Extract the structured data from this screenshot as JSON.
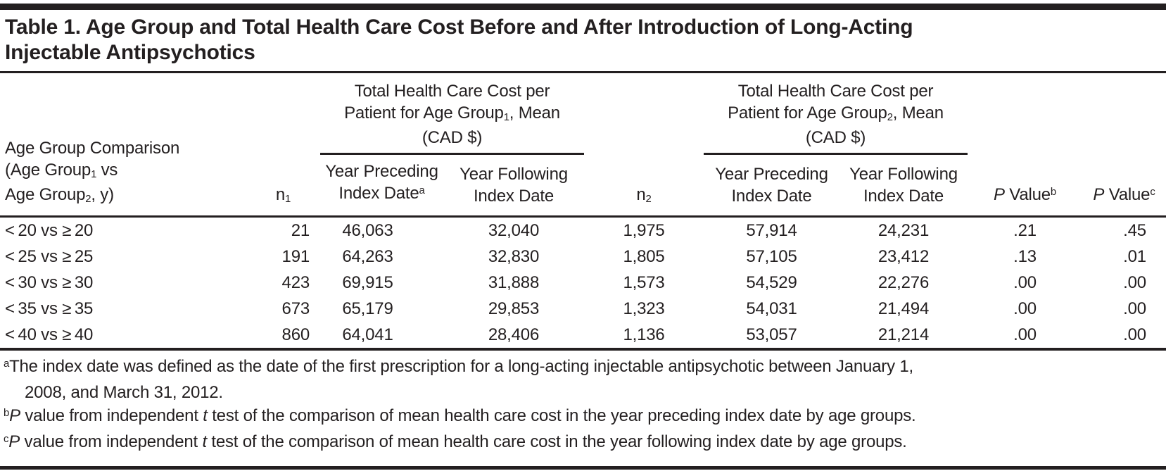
{
  "colors": {
    "text": "#231f20",
    "rule": "#231f20",
    "background": "#ffffff"
  },
  "title": {
    "line1": "Table 1. Age Group and Total Health Care Cost Before and After Introduction of Long-Acting",
    "line2": "Injectable Antipsychotics"
  },
  "table": {
    "header": {
      "stub": {
        "line1": "Age Group Comparison",
        "line2_pre": "(Age Group",
        "line2_sub": "1",
        "line2_post": " vs",
        "line3_pre": "Age Group",
        "line3_sub": "2",
        "line3_post": ", y)"
      },
      "n1": {
        "base": "n",
        "sub": "1"
      },
      "n2": {
        "base": "n",
        "sub": "2"
      },
      "group1": {
        "line1": "Total Health Care Cost per",
        "line2_pre": "Patient for Age Group",
        "line2_sub": "1",
        "line2_post": ", Mean",
        "line3": "(CAD $)"
      },
      "group2": {
        "line1": "Total Health Care Cost per",
        "line2_pre": "Patient for Age Group",
        "line2_sub": "2",
        "line2_post": ", Mean",
        "line3": "(CAD $)"
      },
      "g1_preceding": {
        "line1": "Year Preceding",
        "line2": "Index Date",
        "sup": "a"
      },
      "g1_following": {
        "line1": "Year Following",
        "line2": "Index Date"
      },
      "g2_preceding": {
        "line1": "Year Preceding",
        "line2": "Index Date"
      },
      "g2_following": {
        "line1": "Year Following",
        "line2": "Index Date"
      },
      "p_value_b": {
        "p": "P",
        "rest": " Value",
        "sup": "b"
      },
      "p_value_c": {
        "p": "P",
        "rest": " Value",
        "sup": "c"
      }
    },
    "rows": [
      {
        "comparison": "< 20 vs ≥ 20",
        "n1": "21",
        "g1_preceding": "46,063",
        "g1_following": "32,040",
        "n2": "1,975",
        "g2_preceding": "57,914",
        "g2_following": "24,231",
        "p_value_b": ".21",
        "p_value_c": ".45"
      },
      {
        "comparison": "< 25 vs ≥ 25",
        "n1": "191",
        "g1_preceding": "64,263",
        "g1_following": "32,830",
        "n2": "1,805",
        "g2_preceding": "57,105",
        "g2_following": "23,412",
        "p_value_b": ".13",
        "p_value_c": ".01"
      },
      {
        "comparison": "< 30 vs ≥ 30",
        "n1": "423",
        "g1_preceding": "69,915",
        "g1_following": "31,888",
        "n2": "1,573",
        "g2_preceding": "54,529",
        "g2_following": "22,276",
        "p_value_b": ".00",
        "p_value_c": ".00"
      },
      {
        "comparison": "< 35 vs ≥ 35",
        "n1": "673",
        "g1_preceding": "65,179",
        "g1_following": "29,853",
        "n2": "1,323",
        "g2_preceding": "54,031",
        "g2_following": "21,494",
        "p_value_b": ".00",
        "p_value_c": ".00"
      },
      {
        "comparison": "< 40 vs ≥ 40",
        "n1": "860",
        "g1_preceding": "64,041",
        "g1_following": "28,406",
        "n2": "1,136",
        "g2_preceding": "53,057",
        "g2_following": "21,214",
        "p_value_b": ".00",
        "p_value_c": ".00"
      }
    ]
  },
  "footnotes": [
    {
      "parts": [
        {
          "text": "a",
          "fmt": "sup"
        },
        {
          "text": "The index date was defined as the date of the first prescription for a long-acting injectable antipsychotic between January 1,",
          "fmt": ""
        },
        {
          "fmt": "br"
        },
        {
          "text": "2008, and March 31, 2012.",
          "fmt": "indent"
        }
      ]
    },
    {
      "parts": [
        {
          "text": "b",
          "fmt": "sup"
        },
        {
          "text": "P",
          "fmt": "i"
        },
        {
          "text": " value from independent ",
          "fmt": ""
        },
        {
          "text": "t",
          "fmt": "i"
        },
        {
          "text": " test of the comparison of mean health care cost in the year preceding index date by age groups.",
          "fmt": ""
        }
      ]
    },
    {
      "parts": [
        {
          "text": "c",
          "fmt": "sup"
        },
        {
          "text": "P",
          "fmt": "i"
        },
        {
          "text": " value from independent ",
          "fmt": ""
        },
        {
          "text": "t",
          "fmt": "i"
        },
        {
          "text": " test of the comparison of mean health care cost in the year following index date by age groups.",
          "fmt": ""
        }
      ]
    }
  ]
}
